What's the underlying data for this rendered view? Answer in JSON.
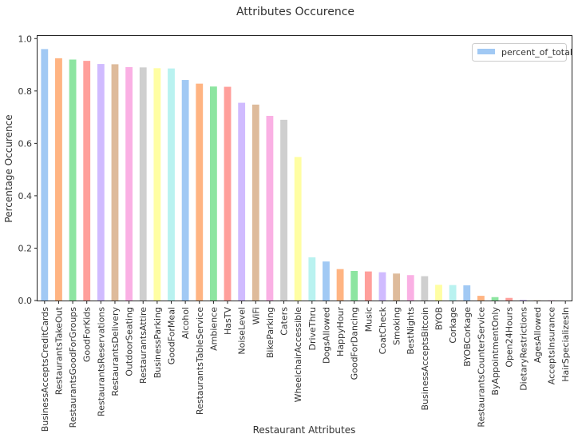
{
  "chart_data": {
    "type": "bar",
    "title": "Attributes Occurence",
    "xlabel": "Restaurant Attributes",
    "ylabel": "Percentage Occurence",
    "ylim": [
      0,
      1.01
    ],
    "yticks": [
      0.0,
      0.2,
      0.4,
      0.6,
      0.8,
      1.0
    ],
    "ytick_labels": [
      "0.0",
      "0.2",
      "0.4",
      "0.6",
      "0.8",
      "1.0"
    ],
    "grid": false,
    "legend": {
      "placement": "top-right",
      "entries": [
        "percent_of_total"
      ]
    },
    "palette": [
      "#a1c9f4",
      "#ffb482",
      "#8de5a1",
      "#ff9f9b",
      "#d0bbff",
      "#debb9b",
      "#fab0e4",
      "#cfcfcf",
      "#fffea3",
      "#b9f2f0"
    ],
    "categories": [
      "BusinessAcceptsCreditCards",
      "RestaurantsTakeOut",
      "RestaurantsGoodForGroups",
      "GoodForKids",
      "RestaurantsReservations",
      "RestaurantsDelivery",
      "OutdoorSeating",
      "RestaurantsAttire",
      "BusinessParking",
      "GoodForMeal",
      "Alcohol",
      "RestaurantsTableService",
      "Ambience",
      "HasTV",
      "NoiseLevel",
      "WiFi",
      "BikeParking",
      "Caters",
      "WheelchairAccessible",
      "DriveThru",
      "DogsAllowed",
      "HappyHour",
      "GoodForDancing",
      "Music",
      "CoatCheck",
      "Smoking",
      "BestNights",
      "BusinessAcceptsBitcoin",
      "BYOB",
      "Corkage",
      "BYOBCorkage",
      "RestaurantsCounterService",
      "ByAppointmentOnly",
      "Open24Hours",
      "DietaryRestrictions",
      "AgesAllowed",
      "AcceptsInsurance",
      "HairSpecializesIn"
    ],
    "series": [
      {
        "name": "percent_of_total",
        "values": [
          0.96,
          0.925,
          0.92,
          0.915,
          0.903,
          0.902,
          0.891,
          0.89,
          0.887,
          0.886,
          0.842,
          0.828,
          0.817,
          0.816,
          0.755,
          0.748,
          0.705,
          0.69,
          0.548,
          0.165,
          0.149,
          0.12,
          0.113,
          0.111,
          0.108,
          0.103,
          0.097,
          0.093,
          0.06,
          0.059,
          0.058,
          0.018,
          0.013,
          0.01,
          0.003,
          0.001,
          0.001,
          0.0
        ]
      }
    ]
  }
}
